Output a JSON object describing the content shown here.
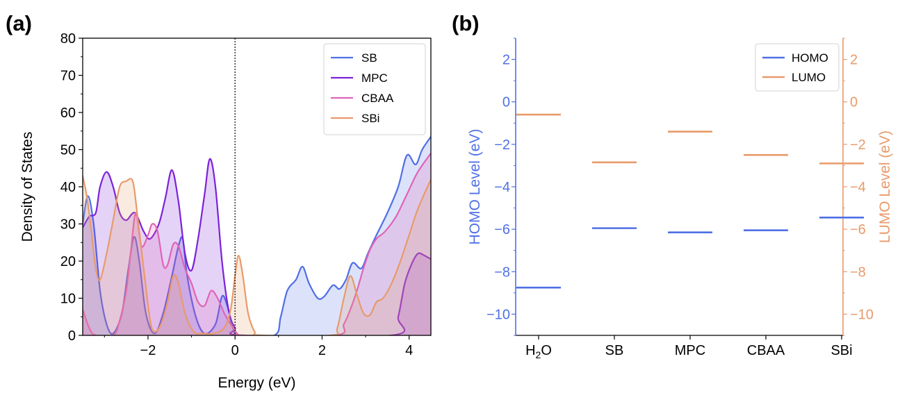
{
  "colors": {
    "SB": "#4f6fe6",
    "MPC": "#7b22d8",
    "CBAA": "#e063b6",
    "SBi": "#e89a6a",
    "homo": "#4f6fe6",
    "lumo": "#e89a6a"
  },
  "chart_data": [
    {
      "type": "area",
      "panel_label": "(a)",
      "xlabel": "Energy (eV)",
      "ylabel": "Density of States",
      "xlim": [
        -3.5,
        4.5
      ],
      "ylim": [
        0,
        80
      ],
      "xticks": [
        -2,
        0,
        2,
        4
      ],
      "xtick_labels": [
        "−2",
        "0",
        "2",
        "4"
      ],
      "yticks": [
        0,
        10,
        20,
        30,
        40,
        50,
        60,
        70,
        80
      ],
      "ytick_labels": [
        "0",
        "10",
        "20",
        "30",
        "40",
        "50",
        "60",
        "70",
        "80"
      ],
      "fermi_line_x": 0,
      "legend_position": "top-right",
      "series": [
        {
          "name": "SB",
          "points": [
            [
              -3.5,
              30
            ],
            [
              -3.38,
              37.5
            ],
            [
              -3.25,
              30
            ],
            [
              -3.1,
              12
            ],
            [
              -2.95,
              3
            ],
            [
              -2.8,
              0.5
            ],
            [
              -2.6,
              6
            ],
            [
              -2.45,
              18
            ],
            [
              -2.32,
              26.5
            ],
            [
              -2.2,
              20
            ],
            [
              -2.05,
              6
            ],
            [
              -1.85,
              0.5
            ],
            [
              -1.65,
              6
            ],
            [
              -1.45,
              16
            ],
            [
              -1.3,
              24
            ],
            [
              -1.2,
              26
            ],
            [
              -1.1,
              16
            ],
            [
              -0.9,
              5
            ],
            [
              -0.7,
              0.5
            ],
            [
              -0.45,
              3
            ],
            [
              -0.3,
              10.5
            ],
            [
              -0.18,
              8
            ],
            [
              -0.05,
              2
            ],
            [
              0.1,
              0
            ],
            [
              0.9,
              0
            ],
            [
              1.05,
              5
            ],
            [
              1.2,
              12
            ],
            [
              1.4,
              15
            ],
            [
              1.55,
              18.5
            ],
            [
              1.7,
              14
            ],
            [
              1.9,
              10
            ],
            [
              2.05,
              10.5
            ],
            [
              2.25,
              13.5
            ],
            [
              2.4,
              12.5
            ],
            [
              2.55,
              15
            ],
            [
              2.7,
              19.5
            ],
            [
              2.9,
              18
            ],
            [
              3.05,
              22
            ],
            [
              3.25,
              27
            ],
            [
              3.5,
              33
            ],
            [
              3.75,
              40
            ],
            [
              3.95,
              48.5
            ],
            [
              4.15,
              46
            ],
            [
              4.3,
              50
            ],
            [
              4.5,
              53.5
            ]
          ]
        },
        {
          "name": "MPC",
          "points": [
            [
              -3.5,
              29
            ],
            [
              -3.35,
              32
            ],
            [
              -3.2,
              33
            ],
            [
              -3.1,
              40
            ],
            [
              -2.95,
              44
            ],
            [
              -2.8,
              40
            ],
            [
              -2.65,
              33
            ],
            [
              -2.5,
              31
            ],
            [
              -2.3,
              33
            ],
            [
              -2.1,
              28
            ],
            [
              -1.95,
              26
            ],
            [
              -1.75,
              30
            ],
            [
              -1.6,
              37
            ],
            [
              -1.45,
              44.5
            ],
            [
              -1.3,
              36
            ],
            [
              -1.15,
              22
            ],
            [
              -1.0,
              17.5
            ],
            [
              -0.85,
              26
            ],
            [
              -0.7,
              38
            ],
            [
              -0.58,
              47.5
            ],
            [
              -0.45,
              40
            ],
            [
              -0.3,
              20
            ],
            [
              -0.15,
              7
            ],
            [
              0.0,
              2
            ],
            [
              0.2,
              0
            ],
            [
              3.6,
              0
            ],
            [
              3.75,
              5
            ],
            [
              3.9,
              14
            ],
            [
              4.05,
              19
            ],
            [
              4.2,
              22
            ],
            [
              4.35,
              21.5
            ],
            [
              4.5,
              20.5
            ]
          ]
        },
        {
          "name": "CBAA",
          "points": [
            [
              -3.5,
              7
            ],
            [
              -3.35,
              2
            ],
            [
              -3.2,
              0
            ],
            [
              -2.8,
              0
            ],
            [
              -2.65,
              4
            ],
            [
              -2.5,
              12
            ],
            [
              -2.4,
              22
            ],
            [
              -2.28,
              33
            ],
            [
              -2.15,
              24
            ],
            [
              -2.0,
              27
            ],
            [
              -1.9,
              30
            ],
            [
              -1.78,
              28
            ],
            [
              -1.65,
              19
            ],
            [
              -1.55,
              19
            ],
            [
              -1.42,
              24.5
            ],
            [
              -1.3,
              24
            ],
            [
              -1.15,
              18
            ],
            [
              -1.0,
              14
            ],
            [
              -0.85,
              9
            ],
            [
              -0.7,
              8
            ],
            [
              -0.55,
              12
            ],
            [
              -0.4,
              10
            ],
            [
              -0.25,
              6
            ],
            [
              -0.1,
              3
            ],
            [
              0.05,
              0.5
            ],
            [
              0.2,
              0
            ],
            [
              2.3,
              0
            ],
            [
              2.5,
              3
            ],
            [
              2.65,
              7
            ],
            [
              2.8,
              12
            ],
            [
              2.95,
              18
            ],
            [
              3.1,
              23
            ],
            [
              3.25,
              26
            ],
            [
              3.45,
              28
            ],
            [
              3.7,
              32
            ],
            [
              3.95,
              38
            ],
            [
              4.2,
              44
            ],
            [
              4.5,
              49
            ]
          ]
        },
        {
          "name": "SBi",
          "points": [
            [
              -3.5,
              43
            ],
            [
              -3.4,
              37
            ],
            [
              -3.3,
              28
            ],
            [
              -3.2,
              18
            ],
            [
              -3.1,
              15
            ],
            [
              -2.95,
              22
            ],
            [
              -2.8,
              31
            ],
            [
              -2.65,
              40
            ],
            [
              -2.5,
              41.5
            ],
            [
              -2.35,
              41.5
            ],
            [
              -2.25,
              33
            ],
            [
              -2.1,
              18
            ],
            [
              -1.95,
              4
            ],
            [
              -1.85,
              1
            ],
            [
              -1.7,
              3
            ],
            [
              -1.55,
              9
            ],
            [
              -1.42,
              16
            ],
            [
              -1.3,
              14
            ],
            [
              -1.15,
              6
            ],
            [
              -0.95,
              1
            ],
            [
              -0.75,
              0.5
            ],
            [
              -0.5,
              0.5
            ],
            [
              -0.25,
              2
            ],
            [
              -0.1,
              7
            ],
            [
              0.0,
              16
            ],
            [
              0.08,
              21.5
            ],
            [
              0.18,
              16
            ],
            [
              0.3,
              6
            ],
            [
              0.45,
              1
            ],
            [
              0.6,
              0
            ],
            [
              2.2,
              0
            ],
            [
              2.35,
              2
            ],
            [
              2.5,
              10
            ],
            [
              2.65,
              16
            ],
            [
              2.8,
              11
            ],
            [
              2.95,
              6
            ],
            [
              3.1,
              5.5
            ],
            [
              3.25,
              9
            ],
            [
              3.4,
              10
            ],
            [
              3.6,
              14
            ],
            [
              3.8,
              20
            ],
            [
              4.0,
              27
            ],
            [
              4.2,
              34
            ],
            [
              4.5,
              42
            ]
          ]
        }
      ]
    },
    {
      "type": "bar",
      "panel_label": "(b)",
      "categories": [
        "H2O",
        "SB",
        "MPC",
        "CBAA",
        "SBi"
      ],
      "category_labels": [
        {
          "main": "H",
          "sub": "2",
          "rest": "O"
        },
        {
          "main": "SB",
          "sub": "",
          "rest": ""
        },
        {
          "main": "MPC",
          "sub": "",
          "rest": ""
        },
        {
          "main": "CBAA",
          "sub": "",
          "rest": ""
        },
        {
          "main": "SBi",
          "sub": "",
          "rest": ""
        }
      ],
      "ylabel_left": "HOMO Level (eV)",
      "ylabel_right": "LUMO Level (eV)",
      "ylim": [
        -11,
        3
      ],
      "yticks": [
        -10,
        -8,
        -6,
        -4,
        -2,
        0,
        2
      ],
      "ytick_labels": [
        "−10",
        "−8",
        "−6",
        "−4",
        "−2",
        "0",
        "2"
      ],
      "legend_position": "top-right",
      "series": [
        {
          "name": "HOMO",
          "values": [
            -8.75,
            -5.95,
            -6.15,
            -6.05,
            -5.45
          ]
        },
        {
          "name": "LUMO",
          "values": [
            -0.6,
            -2.85,
            -1.4,
            -2.5,
            -2.9
          ]
        }
      ]
    }
  ]
}
